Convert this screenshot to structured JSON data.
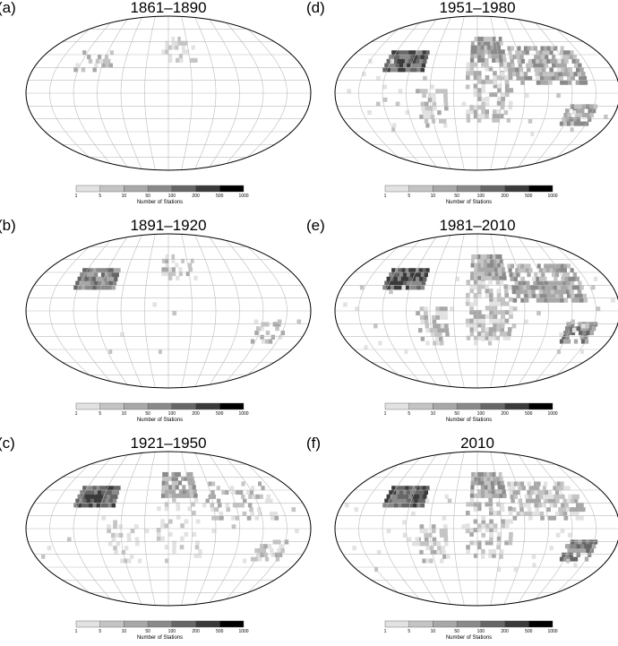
{
  "panels": [
    {
      "label": "(a)",
      "title": "1861–1890"
    },
    {
      "label": "(d)",
      "title": "1951–1980"
    },
    {
      "label": "(b)",
      "title": "1891–1920"
    },
    {
      "label": "(e)",
      "title": "1981–2010"
    },
    {
      "label": "(c)",
      "title": "1921–1950"
    },
    {
      "label": "(f)",
      "title": "2010"
    }
  ],
  "colorbar": {
    "ticks": [
      "1",
      "5",
      "10",
      "50",
      "100",
      "200",
      "500",
      "1000"
    ],
    "label": "Number of Stations"
  }
}
